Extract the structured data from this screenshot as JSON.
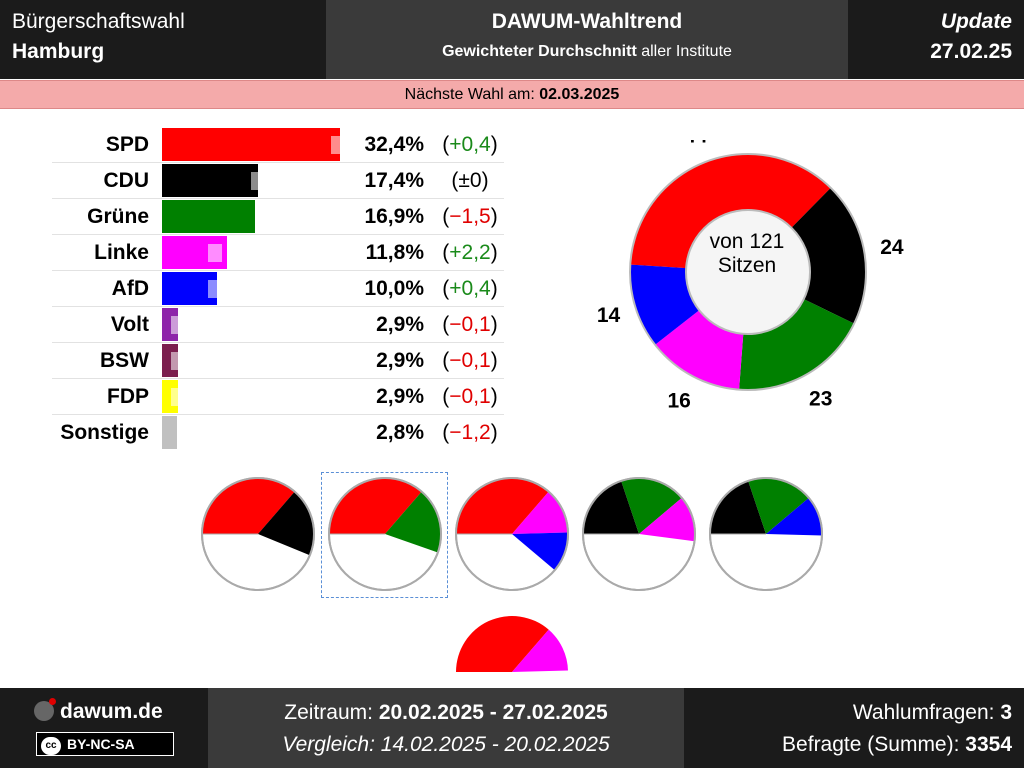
{
  "header": {
    "left_line1": "Bürgerschaftswahl",
    "left_line2": "Hamburg",
    "center_title": "DAWUM-Wahltrend",
    "center_sub_bold": "Gewichteter Durchschnitt",
    "center_sub_rest": " aller Institute",
    "right_label": "Update",
    "right_date": "27.02.25"
  },
  "banner": {
    "label": "Nächste Wahl am: ",
    "date": "02.03.2025"
  },
  "chart_data": [
    {
      "type": "bar",
      "orientation": "horizontal",
      "categories": [
        "SPD",
        "CDU",
        "Grüne",
        "Linke",
        "AfD",
        "Volt",
        "BSW",
        "FDP",
        "Sonstige"
      ],
      "values": [
        32.4,
        17.4,
        16.9,
        11.8,
        10.0,
        2.9,
        2.9,
        2.9,
        2.8
      ],
      "value_labels": [
        "32,4%",
        "17,4%",
        "16,9%",
        "11,8%",
        "10,0%",
        "2,9%",
        "2,9%",
        "2,9%",
        "2,8%"
      ],
      "previous_values": [
        32.0,
        17.4,
        18.4,
        9.6,
        9.6,
        3.0,
        3.0,
        3.0,
        4.0
      ],
      "changes": [
        {
          "text": "+0,4",
          "sign": "pos"
        },
        {
          "text": "±0",
          "sign": "zero"
        },
        {
          "text": "−1,5",
          "sign": "neg"
        },
        {
          "text": "+2,2",
          "sign": "pos"
        },
        {
          "text": "+0,4",
          "sign": "pos"
        },
        {
          "text": "−0,1",
          "sign": "neg"
        },
        {
          "text": "−0,1",
          "sign": "neg"
        },
        {
          "text": "−0,1",
          "sign": "neg"
        },
        {
          "text": "−1,2",
          "sign": "neg"
        }
      ],
      "colors": [
        "#ff0000",
        "#000000",
        "#008000",
        "#ff00ff",
        "#0000ff",
        "#8e24aa",
        "#7b1e4e",
        "#ffff00",
        "#c0c0c0"
      ],
      "xlim": [
        0,
        32.4
      ]
    },
    {
      "type": "pie",
      "style": "donut",
      "labels": [
        "SPD",
        "CDU",
        "Grüne",
        "Linke",
        "AfD"
      ],
      "values": [
        44,
        24,
        23,
        16,
        14
      ],
      "colors": [
        "#ff0000",
        "#000000",
        "#008000",
        "#ff00ff",
        "#0000ff"
      ],
      "center_line1": "von 121",
      "center_line2": "Sitzen",
      "total": 121
    },
    {
      "type": "pie",
      "style": "coalition-half-pies",
      "total": 121,
      "selected": 1,
      "coalitions": [
        {
          "parties": [
            "SPD",
            "CDU"
          ],
          "seats": [
            44,
            24
          ],
          "colors": [
            "#ff0000",
            "#000000"
          ]
        },
        {
          "parties": [
            "SPD",
            "Grüne"
          ],
          "seats": [
            44,
            23
          ],
          "colors": [
            "#ff0000",
            "#008000"
          ]
        },
        {
          "parties": [
            "SPD",
            "Linke",
            "AfD"
          ],
          "seats": [
            44,
            16,
            14
          ],
          "colors": [
            "#ff0000",
            "#ff00ff",
            "#0000ff"
          ]
        },
        {
          "parties": [
            "CDU",
            "Grüne",
            "Linke"
          ],
          "seats": [
            24,
            23,
            16
          ],
          "colors": [
            "#000000",
            "#008000",
            "#ff00ff"
          ]
        },
        {
          "parties": [
            "CDU",
            "Grüne",
            "AfD"
          ],
          "seats": [
            24,
            23,
            14
          ],
          "colors": [
            "#000000",
            "#008000",
            "#0000ff"
          ]
        },
        {
          "parties": [
            "SPD",
            "Linke"
          ],
          "seats": [
            44,
            16
          ],
          "colors": [
            "#ff0000",
            "#ff00ff"
          ]
        }
      ]
    }
  ],
  "footer": {
    "site": "dawum.de",
    "license": "BY-NC-SA",
    "license_mark": "cc",
    "period_label": "Zeitraum: ",
    "period_value": "20.02.2025 - 27.02.2025",
    "compare_label": "Vergleich: 14.02.2025 - 20.02.2025",
    "polls_label": "Wahlumfragen: ",
    "polls_value": "3",
    "respondents_label": "Befragte (Summe): ",
    "respondents_value": "3354"
  }
}
